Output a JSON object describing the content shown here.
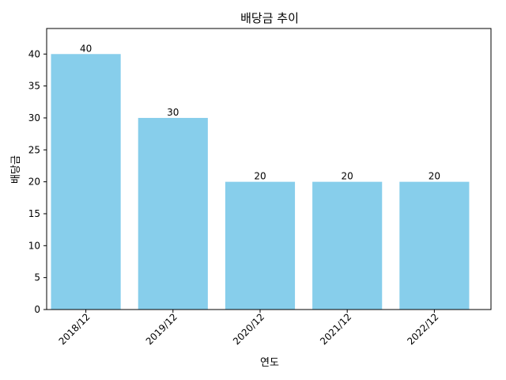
{
  "chart_data": {
    "type": "bar",
    "title": "배당금 추이",
    "xlabel": "연도",
    "ylabel": "배당금",
    "categories": [
      "2018/12",
      "2019/12",
      "2020/12",
      "2021/12",
      "2022/12"
    ],
    "values": [
      40,
      30,
      20,
      20,
      20
    ],
    "ylim": [
      0,
      44
    ],
    "yticks": [
      0,
      5,
      10,
      15,
      20,
      25,
      30,
      35,
      40
    ],
    "bar_color": "#87ceeb",
    "grid": false,
    "legend": "none",
    "data_labels": true
  }
}
